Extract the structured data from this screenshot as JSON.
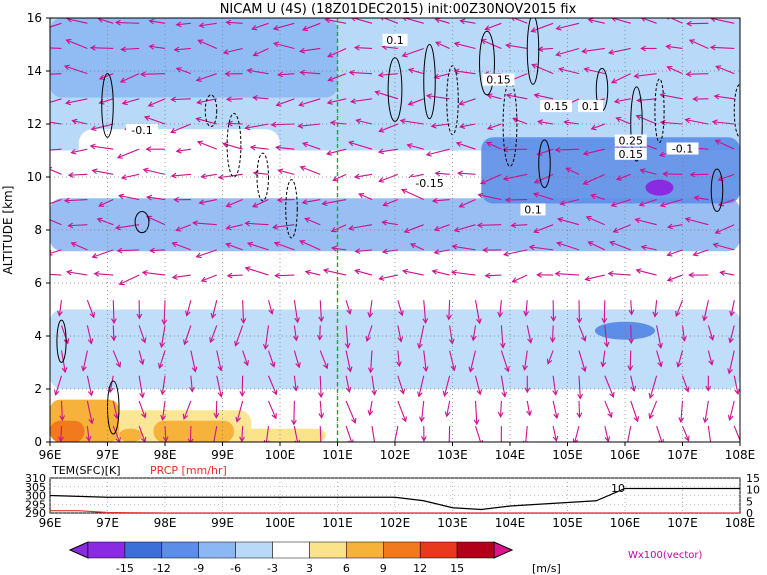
{
  "title": "NICAM U (4S) (18Z01DEC2015) init:00Z30NOV2015 fix",
  "vector_label": "Wx100(vector)",
  "colorbar_unit": "[m/s]",
  "colors": {
    "neg15": "#8a2be2",
    "neg12": "#3d6fd8",
    "neg9": "#5c8de8",
    "neg6": "#8db7f2",
    "neg3": "#b9d9f8",
    "zero": "#ffffff",
    "pos3": "#fbe38a",
    "pos6": "#f7b23c",
    "pos9": "#f27a1e",
    "pos12": "#e8391c",
    "pos15": "#b3001a",
    "ext": "#e0148c",
    "vector": "#d1108e",
    "meridian": "#1faa1f"
  },
  "chart_data": [
    {
      "type": "heatmap",
      "title": "NICAM U (4S) (18Z01DEC2015) init:00Z30NOV2015 fix",
      "xlabel": "",
      "ylabel": "ALTITUDE [km]",
      "x_ticks": [
        "96E",
        "97E",
        "98E",
        "99E",
        "100E",
        "101E",
        "102E",
        "103E",
        "104E",
        "105E",
        "106E",
        "107E",
        "108E"
      ],
      "y_ticks": [
        "0",
        "2",
        "4",
        "6",
        "8",
        "10",
        "12",
        "14",
        "16"
      ],
      "xlim": [
        96,
        108
      ],
      "ylim": [
        0,
        16
      ],
      "colorbar_levels": [
        "-15",
        "-12",
        "-9",
        "-6",
        "-3",
        "3",
        "6",
        "9",
        "12",
        "15"
      ],
      "colorbar_unit": "[m/s]",
      "highlight_longitude": 101,
      "vector_legend": "Wx100(vector)",
      "contour_labels": [
        "0.1",
        "-0.1",
        "0.15",
        "-0.15",
        "0.25",
        "0.15",
        "0.1",
        "-0.1",
        "0.15",
        "0.1"
      ],
      "bands": [
        {
          "lon_from": 96,
          "lon_to": 108,
          "z_from": 7.2,
          "z_to": 9.2,
          "level": -6
        },
        {
          "lon_from": 96,
          "lon_to": 101,
          "z_from": 13.0,
          "z_to": 16.0,
          "level": -6
        },
        {
          "lon_from": 103.5,
          "lon_to": 108,
          "z_from": 9.0,
          "z_to": 11.5,
          "level": -9
        },
        {
          "lon_from": 96,
          "lon_to": 108,
          "z_from": 2.0,
          "z_to": 5.0,
          "level": -3
        },
        {
          "lon_from": 96,
          "lon_to": 99.5,
          "z_from": 0,
          "z_to": 1.2,
          "level": 3
        }
      ]
    },
    {
      "type": "line",
      "title": "",
      "series": [
        {
          "name": "TEM(SFC)[K]",
          "x": [
            96,
            97,
            98,
            99,
            100,
            101,
            102,
            102.5,
            103,
            103.5,
            104,
            105,
            105.5,
            106,
            107,
            108
          ],
          "y": [
            300,
            299,
            299,
            299,
            299,
            299,
            299,
            297,
            293,
            292,
            294,
            296,
            297,
            304,
            304,
            304
          ]
        },
        {
          "name": "PRCP [mm/hr]",
          "x": [
            96,
            96.5,
            97,
            98,
            99,
            100,
            101,
            102,
            103,
            104,
            105,
            106,
            107,
            108
          ],
          "y": [
            1,
            1,
            0.2,
            0,
            0,
            0,
            0,
            0,
            0,
            0,
            0,
            0,
            0,
            0
          ]
        }
      ],
      "left_ticks": [
        "310",
        "305",
        "300",
        "295",
        "290"
      ],
      "right_ticks": [
        "15",
        "10",
        "5",
        "0"
      ],
      "x_ticks": [
        "96E",
        "97E",
        "98E",
        "99E",
        "100E",
        "101E",
        "102E",
        "103E",
        "104E",
        "105E",
        "106E",
        "107E",
        "108E"
      ],
      "xlim": [
        96,
        108
      ],
      "ylim": [
        290,
        310
      ],
      "annotation": "10"
    }
  ]
}
